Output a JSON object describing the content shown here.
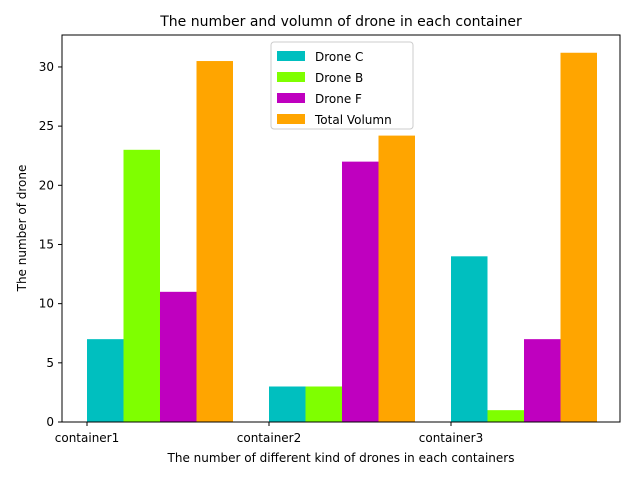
{
  "chart_data": {
    "type": "bar",
    "title": "The number and volumn of drone in each container",
    "xlabel": "The number of different kind of drones in each containers",
    "ylabel": "The number of drone",
    "categories": [
      "container1",
      "container2",
      "container3"
    ],
    "series": [
      {
        "name": "Drone C",
        "color": "#00BFBF",
        "values": [
          7,
          3,
          14
        ]
      },
      {
        "name": "Drone B",
        "color": "#7FFF00",
        "values": [
          23,
          3,
          1
        ]
      },
      {
        "name": "Drone F",
        "color": "#BF00BF",
        "values": [
          11,
          22,
          7
        ]
      },
      {
        "name": "Total Volumn",
        "color": "#FFA500",
        "values": [
          30.5,
          24.2,
          31.2
        ]
      }
    ],
    "ylim": [
      0,
      32.7
    ],
    "yticks": [
      0,
      5,
      10,
      15,
      20,
      25,
      30
    ],
    "legend_position": "top-center",
    "grid": false
  }
}
